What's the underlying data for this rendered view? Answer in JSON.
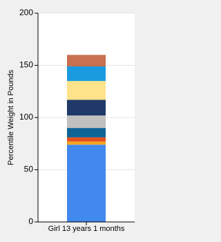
{
  "chart_data": {
    "type": "stacked-bar",
    "y_label": "Percentile Weight in Pounds",
    "categories": [
      "Girl 13 years 1 months"
    ],
    "series": [
      {
        "color": "#4189ef",
        "values": [
          74
        ]
      },
      {
        "color": "#f5a623",
        "values": [
          3
        ]
      },
      {
        "color": "#e5501b",
        "values": [
          4
        ]
      },
      {
        "color": "#0f6496",
        "values": [
          9
        ]
      },
      {
        "color": "#c0c0c0",
        "values": [
          12
        ]
      },
      {
        "color": "#1f3a68",
        "values": [
          15
        ]
      },
      {
        "color": "#ffe38a",
        "values": [
          18
        ]
      },
      {
        "color": "#1a9be0",
        "values": [
          14
        ]
      },
      {
        "color": "#c8704f",
        "values": [
          11
        ]
      }
    ],
    "ylim": [
      0,
      200
    ],
    "yticks": [
      0,
      50,
      100,
      150,
      200
    ],
    "grid": true
  }
}
